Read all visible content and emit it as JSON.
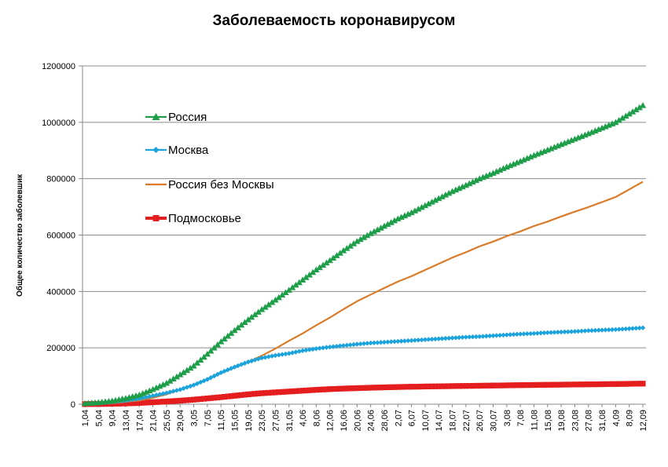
{
  "chart_data": {
    "type": "line",
    "title": "Заболеваемость коронавирусом",
    "xlabel": "",
    "ylabel": "Общее количество заболевшик",
    "ylim": [
      0,
      1200000
    ],
    "yticks": [
      "0",
      "200000",
      "400000",
      "600000",
      "800000",
      "1000000",
      "1200000"
    ],
    "ytick_values": [
      0,
      200000,
      400000,
      600000,
      800000,
      1000000,
      1200000
    ],
    "categories": [
      "1,04",
      "5,04",
      "9,04",
      "13,04",
      "17,04",
      "21,04",
      "25,05",
      "29,04",
      "3,05",
      "7,05",
      "11,05",
      "15,05",
      "19,05",
      "23,05",
      "27,05",
      "31,05",
      "4,06",
      "8,06",
      "12,06",
      "16,06",
      "20,06",
      "24,06",
      "28,06",
      "2,07",
      "6,07",
      "10,07",
      "14,07",
      "18,07",
      "22,07",
      "26,07",
      "30,07",
      "3,08",
      "7,08",
      "11,08",
      "15,08",
      "19,08",
      "23,08",
      "27,08",
      "31,08",
      "4,09",
      "8,09",
      "12,09"
    ],
    "grid": true,
    "legend_position": "top-left",
    "series": [
      {
        "name": "Россия",
        "color": "#1f9e4a",
        "marker": "triangle",
        "values": [
          2800,
          6300,
          11900,
          21100,
          33100,
          52800,
          75000,
          105000,
          136000,
          178000,
          222000,
          262000,
          300000,
          336000,
          370000,
          405000,
          441000,
          477000,
          510000,
          545000,
          578000,
          606000,
          632000,
          658000,
          680000,
          705000,
          730000,
          755000,
          777000,
          800000,
          820000,
          842000,
          862000,
          883000,
          902000,
          922000,
          941000,
          960000,
          980000,
          1000000,
          1030000,
          1060000
        ]
      },
      {
        "name": "Москва",
        "color": "#1aa3dc",
        "marker": "diamond",
        "values": [
          1900,
          4000,
          7800,
          12600,
          20000,
          30000,
          40000,
          52000,
          68000,
          88000,
          112000,
          132000,
          150000,
          164000,
          173000,
          180000,
          190000,
          197000,
          203000,
          208000,
          213000,
          217000,
          220000,
          223000,
          226000,
          229000,
          232000,
          235000,
          238000,
          240000,
          243000,
          246000,
          249000,
          251000,
          254000,
          256000,
          258000,
          261000,
          263000,
          265000,
          268000,
          271000
        ]
      },
      {
        "name": "Россия без Москвы",
        "color": "#d97b28",
        "marker": "none",
        "values": [
          900,
          2300,
          4100,
          8500,
          13100,
          22800,
          35000,
          53000,
          68000,
          90000,
          110000,
          130000,
          150000,
          172000,
          197000,
          225000,
          251000,
          280000,
          307000,
          337000,
          365000,
          389000,
          412000,
          435000,
          454000,
          476000,
          498000,
          520000,
          539000,
          560000,
          577000,
          596000,
          613000,
          632000,
          648000,
          666000,
          683000,
          699000,
          717000,
          735000,
          762000,
          789000
        ]
      },
      {
        "name": "Подмосковье",
        "color": "#e41e1e",
        "marker": "square",
        "values": [
          300,
          800,
          1500,
          2700,
          4400,
          7000,
          9600,
          12500,
          16200,
          20500,
          25000,
          30000,
          35000,
          39000,
          42000,
          45000,
          48000,
          51000,
          53500,
          55500,
          57000,
          58500,
          59800,
          61000,
          62000,
          62800,
          63500,
          64200,
          64900,
          65500,
          66200,
          66900,
          67600,
          68200,
          68800,
          69400,
          69900,
          70500,
          71000,
          71600,
          72300,
          73000
        ]
      }
    ]
  }
}
